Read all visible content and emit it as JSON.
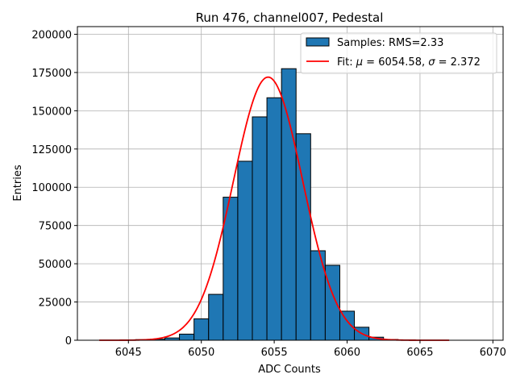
{
  "chart_data": {
    "type": "histogram",
    "title": "Run 476, channel007, Pedestal",
    "xlabel": "ADC Counts",
    "ylabel": "Entries",
    "xlim": [
      6041.5,
      6070.7
    ],
    "ylim": [
      0,
      205000
    ],
    "xticks": [
      6045,
      6050,
      6055,
      6060,
      6065,
      6070
    ],
    "yticks": [
      0,
      25000,
      50000,
      75000,
      100000,
      125000,
      150000,
      175000,
      200000
    ],
    "grid": true,
    "legend_position": "top-right",
    "bar_color": "#1f77b4",
    "fit_color": "#ff0000",
    "bin_width": 1,
    "bins": [
      {
        "x": 6046,
        "value": 400
      },
      {
        "x": 6047,
        "value": 700
      },
      {
        "x": 6048,
        "value": 1500
      },
      {
        "x": 6049,
        "value": 4000
      },
      {
        "x": 6050,
        "value": 14000
      },
      {
        "x": 6051,
        "value": 30000
      },
      {
        "x": 6052,
        "value": 93500
      },
      {
        "x": 6053,
        "value": 117000
      },
      {
        "x": 6054,
        "value": 146000
      },
      {
        "x": 6055,
        "value": 158500
      },
      {
        "x": 6056,
        "value": 177500
      },
      {
        "x": 6057,
        "value": 135000
      },
      {
        "x": 6058,
        "value": 58500
      },
      {
        "x": 6059,
        "value": 49000
      },
      {
        "x": 6060,
        "value": 19000
      },
      {
        "x": 6061,
        "value": 8500
      },
      {
        "x": 6062,
        "value": 2000
      },
      {
        "x": 6063,
        "value": 500
      }
    ],
    "fit": {
      "function": "gaussian",
      "mu": 6054.58,
      "sigma": 2.372,
      "amplitude": 172000,
      "x_range": [
        6043,
        6067
      ]
    },
    "legend": {
      "samples_label": "Samples: RMS=2.33",
      "fit_prefix": "Fit: ",
      "mu_symbol": "μ",
      "mu_text": " = 6054.58, ",
      "sigma_symbol": "σ",
      "sigma_text": " = 2.372"
    }
  }
}
